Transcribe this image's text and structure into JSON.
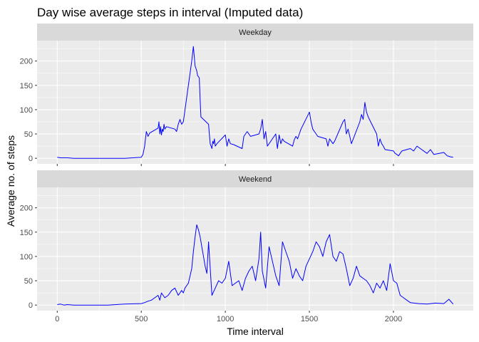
{
  "chart_data": {
    "type": "line",
    "title": "Day wise average steps in interval (Imputed data)",
    "xlabel": "Time interval",
    "ylabel": "Average no. of steps",
    "xlim": [
      -120,
      2475
    ],
    "ylim": [
      -11.5,
      242
    ],
    "x_ticks": [
      0,
      500,
      1000,
      1500,
      2000
    ],
    "y_ticks": [
      0,
      50,
      100,
      150,
      200
    ],
    "grid": true,
    "line_color": "#0000FF",
    "panel_bg": "#EBEBEB",
    "strip_bg": "#D9D9D9",
    "panels": [
      {
        "name": "Weekday",
        "x": [
          0,
          20,
          40,
          60,
          100,
          200,
          300,
          400,
          500,
          510,
          520,
          530,
          540,
          550,
          600,
          605,
          610,
          615,
          620,
          625,
          630,
          635,
          640,
          650,
          700,
          710,
          720,
          730,
          740,
          750,
          800,
          810,
          820,
          830,
          835,
          840,
          845,
          850,
          855,
          900,
          905,
          910,
          915,
          920,
          925,
          930,
          935,
          940,
          950,
          1000,
          1010,
          1020,
          1030,
          1050,
          1100,
          1110,
          1130,
          1150,
          1200,
          1210,
          1220,
          1230,
          1240,
          1250,
          1300,
          1310,
          1320,
          1330,
          1340,
          1350,
          1400,
          1410,
          1420,
          1430,
          1440,
          1450,
          1500,
          1510,
          1520,
          1530,
          1540,
          1550,
          1600,
          1610,
          1620,
          1630,
          1640,
          1650,
          1700,
          1710,
          1720,
          1730,
          1740,
          1750,
          1800,
          1810,
          1820,
          1830,
          1840,
          1850,
          1900,
          1910,
          1920,
          1930,
          1940,
          1950,
          2000,
          2010,
          2020,
          2030,
          2040,
          2050,
          2100,
          2120,
          2140,
          2200,
          2220,
          2240,
          2300,
          2320,
          2340,
          2355
        ],
        "y": [
          2,
          1,
          1,
          1,
          0,
          0,
          0,
          0,
          2,
          8,
          25,
          55,
          45,
          52,
          62,
          75,
          50,
          65,
          48,
          60,
          55,
          70,
          60,
          65,
          60,
          55,
          70,
          80,
          70,
          75,
          200,
          230,
          190,
          180,
          170,
          168,
          165,
          120,
          85,
          70,
          50,
          30,
          25,
          20,
          35,
          30,
          40,
          25,
          30,
          48,
          25,
          40,
          30,
          28,
          20,
          45,
          55,
          45,
          50,
          60,
          80,
          40,
          55,
          25,
          50,
          20,
          48,
          30,
          40,
          35,
          25,
          38,
          45,
          40,
          50,
          60,
          95,
          75,
          60,
          55,
          50,
          45,
          40,
          25,
          40,
          35,
          30,
          35,
          75,
          80,
          50,
          60,
          45,
          30,
          75,
          90,
          80,
          115,
          95,
          85,
          50,
          25,
          40,
          30,
          25,
          18,
          15,
          10,
          8,
          5,
          10,
          15,
          20,
          15,
          25,
          10,
          18,
          8,
          12,
          5,
          3,
          2
        ],
        "x_tick_labels_visible": false
      },
      {
        "name": "Weekend",
        "x": [
          0,
          20,
          40,
          60,
          100,
          200,
          300,
          400,
          500,
          520,
          540,
          560,
          580,
          600,
          610,
          620,
          640,
          660,
          680,
          700,
          720,
          740,
          750,
          760,
          780,
          800,
          810,
          820,
          830,
          840,
          850,
          860,
          870,
          880,
          890,
          900,
          920,
          940,
          960,
          980,
          1000,
          1020,
          1040,
          1060,
          1080,
          1100,
          1120,
          1140,
          1160,
          1180,
          1200,
          1210,
          1220,
          1240,
          1260,
          1280,
          1300,
          1320,
          1340,
          1360,
          1380,
          1400,
          1420,
          1440,
          1460,
          1480,
          1500,
          1520,
          1540,
          1560,
          1580,
          1600,
          1620,
          1640,
          1660,
          1680,
          1700,
          1720,
          1740,
          1760,
          1780,
          1800,
          1820,
          1840,
          1860,
          1880,
          1900,
          1920,
          1940,
          1960,
          1980,
          2000,
          2020,
          2040,
          2060,
          2080,
          2100,
          2150,
          2200,
          2250,
          2300,
          2330,
          2355
        ],
        "y": [
          1,
          2,
          0,
          1,
          0,
          0,
          0,
          2,
          3,
          5,
          8,
          10,
          15,
          20,
          10,
          25,
          15,
          20,
          30,
          35,
          20,
          30,
          25,
          35,
          45,
          75,
          110,
          140,
          165,
          155,
          140,
          120,
          100,
          80,
          65,
          130,
          20,
          35,
          50,
          45,
          55,
          90,
          40,
          45,
          50,
          30,
          55,
          70,
          80,
          50,
          95,
          150,
          70,
          35,
          120,
          90,
          60,
          40,
          130,
          110,
          90,
          55,
          75,
          60,
          50,
          80,
          95,
          110,
          130,
          120,
          100,
          130,
          145,
          100,
          90,
          110,
          105,
          75,
          40,
          55,
          80,
          60,
          55,
          50,
          40,
          25,
          45,
          35,
          50,
          30,
          85,
          50,
          45,
          20,
          15,
          10,
          5,
          3,
          2,
          4,
          3,
          12,
          2
        ],
        "x_tick_labels_visible": true
      }
    ]
  }
}
